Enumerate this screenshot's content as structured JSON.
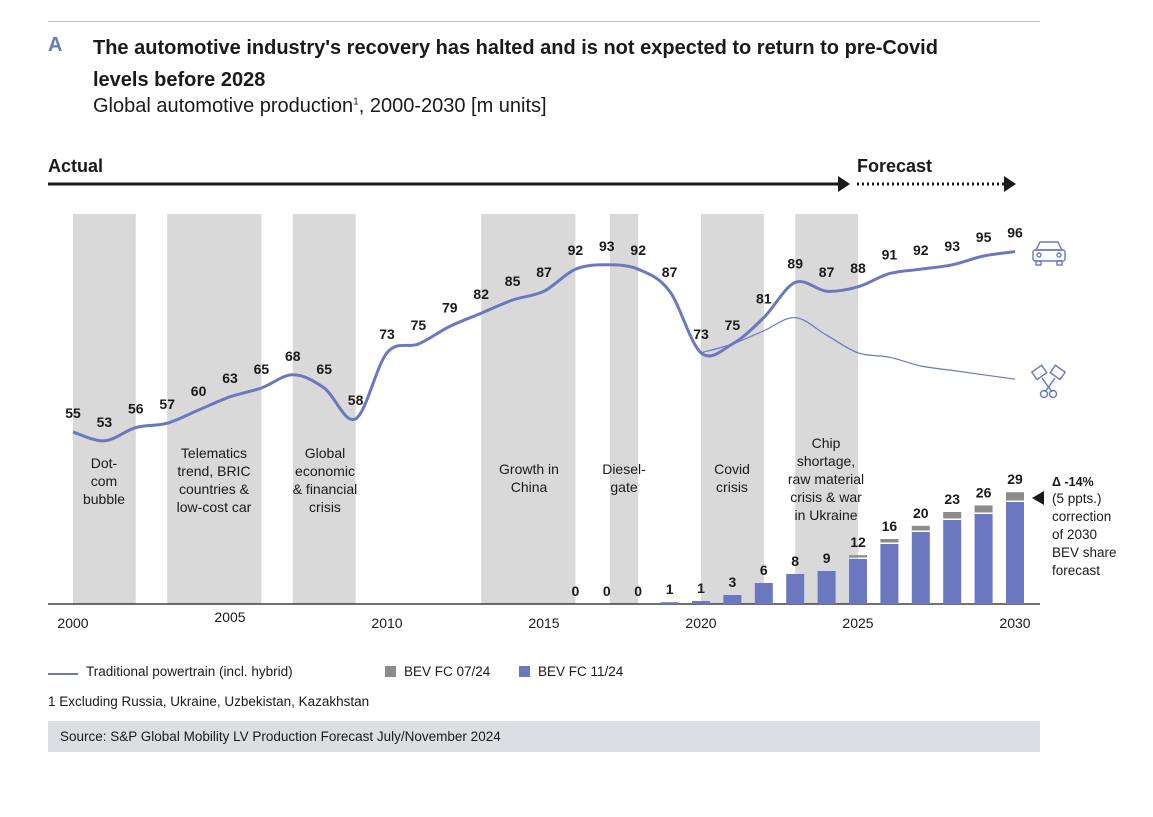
{
  "header": {
    "letter": "A",
    "title": "The automotive industry's recovery has halted and is not expected to return to pre-Covid levels before 2028",
    "subtitle": "Global automotive production",
    "subtitle_sup": "1",
    "subtitle_rest": ", 2000-2030 [m units]"
  },
  "timeline": {
    "actual_label": "Actual",
    "forecast_label": "Forecast"
  },
  "chart_data": {
    "type": "line+bar",
    "x_ticks": [
      "2000",
      "2005",
      "2010",
      "2015",
      "2020",
      "2025",
      "2030"
    ],
    "traditional_series": {
      "name": "Traditional powertrain (incl. hybrid)",
      "years": [
        2000,
        2001,
        2002,
        2003,
        2004,
        2005,
        2006,
        2007,
        2008,
        2009,
        2010,
        2011,
        2012,
        2013,
        2014,
        2015,
        2016,
        2017,
        2018,
        2019,
        2020,
        2021,
        2022,
        2023,
        2024,
        2025,
        2026,
        2027,
        2028,
        2029,
        2030
      ],
      "values": [
        55,
        53,
        56,
        57,
        60,
        63,
        65,
        68,
        65,
        58,
        73,
        75,
        79,
        82,
        85,
        87,
        92,
        93,
        92,
        87,
        73,
        75,
        78,
        81,
        77,
        73,
        72,
        70,
        69,
        68,
        67
      ]
    },
    "total_labels": {
      "years": [
        2000,
        2001,
        2002,
        2003,
        2004,
        2005,
        2006,
        2007,
        2008,
        2009,
        2010,
        2011,
        2012,
        2013,
        2014,
        2015,
        2016,
        2017,
        2018,
        2019,
        2020,
        2021,
        2022,
        2023,
        2024,
        2025,
        2026,
        2027,
        2028,
        2029,
        2030
      ],
      "values": [
        55,
        53,
        56,
        57,
        60,
        63,
        65,
        68,
        65,
        58,
        73,
        75,
        79,
        82,
        85,
        87,
        92,
        93,
        92,
        87,
        73,
        75,
        81,
        89,
        87,
        88,
        91,
        92,
        93,
        95,
        96
      ]
    },
    "bev_series": [
      {
        "name": "BEV FC 07/24",
        "color": "#8c8c8c"
      },
      {
        "name": "BEV FC 11/24",
        "color": "#6b78c0"
      }
    ],
    "bev_labels": {
      "years": [
        2016,
        2017,
        2018,
        2019,
        2020,
        2021,
        2022,
        2023,
        2024,
        2025,
        2026,
        2027,
        2028,
        2029,
        2030
      ],
      "values": [
        0,
        0,
        0,
        1,
        1,
        3,
        6,
        8,
        9,
        12,
        16,
        20,
        23,
        26,
        29
      ]
    },
    "bev_nov_values": [
      0,
      0,
      0,
      0.3,
      0.5,
      1.5,
      3.5,
      5,
      5.5,
      7.5,
      10,
      12,
      14,
      15,
      17
    ],
    "bev_jul_extra": [
      0,
      0,
      0,
      0,
      0,
      0,
      0,
      0,
      0,
      0.3,
      0.5,
      0.7,
      1,
      1.1,
      1.3
    ],
    "event_labels": [
      "Dot-\ncom\nbubble",
      "Telematics\ntrend, BRIC\ncountries &\nlow-cost car",
      "Global\neconomic\n& financial\ncrisis",
      "Growth in\nChina",
      "Diesel-\ngate",
      "Covid\ncrisis",
      "Chip\nshortage,\nraw material\ncrisis & war\nin Ukraine"
    ],
    "annotation": {
      "headline": "Δ -14%",
      "body": "(5 ppts.)\ncorrection\nof 2030\nBEV share\nforecast"
    },
    "icons": [
      "car-icon",
      "piston-icon"
    ]
  },
  "legend": {
    "line_label": "Traditional powertrain (incl. hybrid)",
    "bev_jul_label": "BEV FC 07/24",
    "bev_nov_label": "BEV FC 11/24"
  },
  "footnote": "1  Excluding Russia, Ukraine, Uzbekistan, Kazakhstan",
  "source": "Source: S&P Global Mobility LV Production Forecast July/November 2024",
  "colors": {
    "accent": "#6b78c0",
    "band": "#d9d9d9",
    "bev_old": "#8c8c8c",
    "text": "#1a1a1a"
  }
}
